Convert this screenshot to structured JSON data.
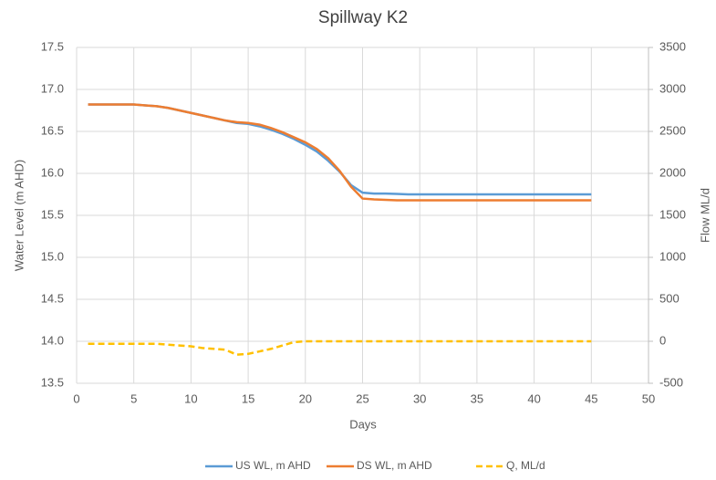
{
  "chart_data": {
    "type": "line",
    "title": "Spillway K2",
    "x_label": "Days",
    "y_label": "Water Level (m AHD)",
    "y2_label": "Flow ML/d",
    "x": [
      1,
      2,
      3,
      4,
      5,
      6,
      7,
      8,
      9,
      10,
      11,
      12,
      13,
      14,
      15,
      16,
      17,
      18,
      19,
      20,
      21,
      22,
      23,
      24,
      25,
      26,
      27,
      28,
      29,
      30,
      31,
      32,
      33,
      34,
      35,
      36,
      37,
      38,
      39,
      40,
      41,
      42,
      43,
      44,
      45
    ],
    "series": [
      {
        "name": "US WL, m AHD",
        "color": "#5b9bd5",
        "line_style": "solid",
        "axis": "y",
        "values": [
          16.82,
          16.82,
          16.82,
          16.82,
          16.82,
          16.81,
          16.8,
          16.78,
          16.75,
          16.72,
          16.69,
          16.66,
          16.63,
          16.6,
          16.59,
          16.56,
          16.52,
          16.47,
          16.41,
          16.34,
          16.26,
          16.15,
          16.02,
          15.86,
          15.77,
          15.76,
          15.76,
          15.755,
          15.75,
          15.75,
          15.75,
          15.75,
          15.75,
          15.75,
          15.75,
          15.75,
          15.75,
          15.75,
          15.75,
          15.75,
          15.75,
          15.75,
          15.75,
          15.75,
          15.75
        ]
      },
      {
        "name": "DS WL, m AHD",
        "color": "#ed7d31",
        "line_style": "solid",
        "axis": "y",
        "values": [
          16.82,
          16.82,
          16.82,
          16.82,
          16.82,
          16.81,
          16.8,
          16.78,
          16.75,
          16.72,
          16.69,
          16.66,
          16.63,
          16.61,
          16.6,
          16.58,
          16.54,
          16.49,
          16.43,
          16.37,
          16.29,
          16.18,
          16.03,
          15.84,
          15.7,
          15.69,
          15.685,
          15.68,
          15.68,
          15.68,
          15.68,
          15.68,
          15.68,
          15.68,
          15.68,
          15.68,
          15.68,
          15.68,
          15.68,
          15.68,
          15.68,
          15.68,
          15.68,
          15.68,
          15.68
        ]
      },
      {
        "name": "Q, ML/d",
        "color": "#ffc000",
        "line_style": "dashed",
        "axis": "y2",
        "values": [
          -30,
          -30,
          -30,
          -30,
          -30,
          -30,
          -30,
          -40,
          -50,
          -60,
          -80,
          -90,
          -100,
          -160,
          -150,
          -120,
          -90,
          -50,
          -10,
          0,
          0,
          0,
          0,
          0,
          0,
          0,
          0,
          0,
          0,
          0,
          0,
          0,
          0,
          0,
          0,
          0,
          0,
          0,
          0,
          0,
          0,
          0,
          0,
          0,
          0
        ]
      }
    ],
    "xlim": [
      0,
      50
    ],
    "xticks": [
      0,
      5,
      10,
      15,
      20,
      25,
      30,
      35,
      40,
      45,
      50
    ],
    "ylim": [
      13.5,
      17.5
    ],
    "yticks": [
      13.5,
      {
        "value": 14,
        "label": "14.0"
      },
      14.5,
      {
        "value": 15,
        "label": "15.0"
      },
      15.5,
      {
        "value": 16,
        "label": "16.0"
      },
      16.5,
      {
        "value": 17,
        "label": "17.0"
      },
      17.5
    ],
    "y2lim": [
      -500,
      3500
    ],
    "y2ticks": [
      -500,
      0,
      500,
      1000,
      1500,
      2000,
      2500,
      3000,
      3500
    ],
    "grid": true,
    "legend": "bottom"
  }
}
